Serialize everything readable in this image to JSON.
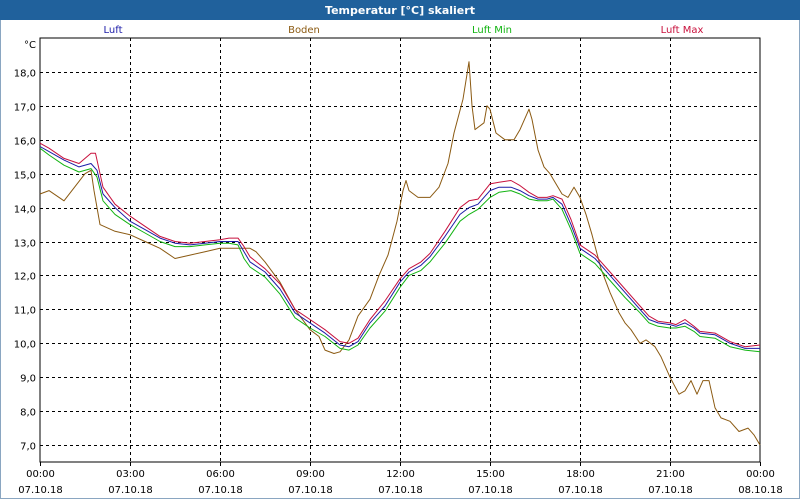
{
  "window": {
    "title": "Temperatur [°C] skaliert"
  },
  "chart_data": {
    "type": "line",
    "title": "Temperatur [°C] skaliert",
    "ylabel": "°C",
    "xlabel": "",
    "ylim": [
      6.5,
      19.0
    ],
    "xlim": [
      0,
      24
    ],
    "grid": true,
    "yticks": [
      7.0,
      8.0,
      9.0,
      10.0,
      11.0,
      12.0,
      13.0,
      14.0,
      15.0,
      16.0,
      17.0,
      18.0
    ],
    "ytick_labels": [
      "7,0",
      "8,0",
      "9,0",
      "10,0",
      "11,0",
      "12,0",
      "13,0",
      "14,0",
      "15,0",
      "16,0",
      "17,0",
      "18,0"
    ],
    "xticks": [
      {
        "x": 0,
        "time": "00:00",
        "date": "07.10.18"
      },
      {
        "x": 3,
        "time": "03:00",
        "date": "07.10.18"
      },
      {
        "x": 6,
        "time": "06:00",
        "date": "07.10.18"
      },
      {
        "x": 9,
        "time": "09:00",
        "date": "07.10.18"
      },
      {
        "x": 12,
        "time": "12:00",
        "date": "07.10.18"
      },
      {
        "x": 15,
        "time": "15:00",
        "date": "07.10.18"
      },
      {
        "x": 18,
        "time": "18:00",
        "date": "07.10.18"
      },
      {
        "x": 21,
        "time": "21:00",
        "date": "07.10.18"
      },
      {
        "x": 24,
        "time": "00:00",
        "date": "08.10.18"
      }
    ],
    "series": [
      {
        "name": "Boden",
        "color": "#8b5a12",
        "points": [
          [
            0,
            14.4
          ],
          [
            0.3,
            14.5
          ],
          [
            0.8,
            14.2
          ],
          [
            1.5,
            15.0
          ],
          [
            1.7,
            15.1
          ],
          [
            1.8,
            14.5
          ],
          [
            2.0,
            13.5
          ],
          [
            2.5,
            13.3
          ],
          [
            3.0,
            13.2
          ],
          [
            3.5,
            13.0
          ],
          [
            4.0,
            12.8
          ],
          [
            4.5,
            12.5
          ],
          [
            5.0,
            12.6
          ],
          [
            5.5,
            12.7
          ],
          [
            6.0,
            12.8
          ],
          [
            6.5,
            12.8
          ],
          [
            7.0,
            12.8
          ],
          [
            7.2,
            12.7
          ],
          [
            7.5,
            12.4
          ],
          [
            8.0,
            11.8
          ],
          [
            8.5,
            11.0
          ],
          [
            9.0,
            10.4
          ],
          [
            9.3,
            10.2
          ],
          [
            9.5,
            9.8
          ],
          [
            9.8,
            9.7
          ],
          [
            10.0,
            9.75
          ],
          [
            10.3,
            10.1
          ],
          [
            10.6,
            10.8
          ],
          [
            11.0,
            11.3
          ],
          [
            11.3,
            12.0
          ],
          [
            11.6,
            12.6
          ],
          [
            11.9,
            13.6
          ],
          [
            12.1,
            14.5
          ],
          [
            12.2,
            14.8
          ],
          [
            12.3,
            14.5
          ],
          [
            12.6,
            14.3
          ],
          [
            13.0,
            14.3
          ],
          [
            13.3,
            14.6
          ],
          [
            13.6,
            15.3
          ],
          [
            13.8,
            16.2
          ],
          [
            14.1,
            17.2
          ],
          [
            14.3,
            18.3
          ],
          [
            14.4,
            17.0
          ],
          [
            14.5,
            16.3
          ],
          [
            14.8,
            16.5
          ],
          [
            14.9,
            17.0
          ],
          [
            15.0,
            16.9
          ],
          [
            15.2,
            16.2
          ],
          [
            15.5,
            16.0
          ],
          [
            15.8,
            16.0
          ],
          [
            16.0,
            16.3
          ],
          [
            16.3,
            16.9
          ],
          [
            16.4,
            16.6
          ],
          [
            16.6,
            15.7
          ],
          [
            16.8,
            15.2
          ],
          [
            17.0,
            15.0
          ],
          [
            17.2,
            14.7
          ],
          [
            17.4,
            14.4
          ],
          [
            17.6,
            14.3
          ],
          [
            17.8,
            14.6
          ],
          [
            18.0,
            14.3
          ],
          [
            18.2,
            13.8
          ],
          [
            18.4,
            13.2
          ],
          [
            18.7,
            12.2
          ],
          [
            19.0,
            11.5
          ],
          [
            19.3,
            10.9
          ],
          [
            19.5,
            10.6
          ],
          [
            19.7,
            10.4
          ],
          [
            20.0,
            10.0
          ],
          [
            20.2,
            10.1
          ],
          [
            20.5,
            9.9
          ],
          [
            20.7,
            9.6
          ],
          [
            21.0,
            9.0
          ],
          [
            21.3,
            8.5
          ],
          [
            21.5,
            8.6
          ],
          [
            21.7,
            8.9
          ],
          [
            21.9,
            8.5
          ],
          [
            22.1,
            8.9
          ],
          [
            22.3,
            8.9
          ],
          [
            22.5,
            8.1
          ],
          [
            22.7,
            7.8
          ],
          [
            23.0,
            7.7
          ],
          [
            23.3,
            7.4
          ],
          [
            23.6,
            7.5
          ],
          [
            23.8,
            7.3
          ],
          [
            24.0,
            7.0
          ]
        ]
      },
      {
        "name": "Luft",
        "color": "#1c1ca8",
        "points": [
          [
            0,
            15.8
          ],
          [
            0.3,
            15.65
          ],
          [
            0.8,
            15.4
          ],
          [
            1.3,
            15.2
          ],
          [
            1.7,
            15.3
          ],
          [
            1.9,
            15.1
          ],
          [
            2.1,
            14.4
          ],
          [
            2.5,
            14.0
          ],
          [
            3.0,
            13.6
          ],
          [
            3.5,
            13.35
          ],
          [
            4.0,
            13.1
          ],
          [
            4.5,
            12.95
          ],
          [
            5.0,
            12.9
          ],
          [
            5.5,
            12.95
          ],
          [
            6.0,
            13.0
          ],
          [
            6.3,
            13.0
          ],
          [
            6.6,
            13.0
          ],
          [
            6.8,
            12.7
          ],
          [
            7.0,
            12.4
          ],
          [
            7.5,
            12.1
          ],
          [
            8.0,
            11.6
          ],
          [
            8.5,
            10.9
          ],
          [
            9.0,
            10.6
          ],
          [
            9.5,
            10.3
          ],
          [
            10.0,
            9.95
          ],
          [
            10.3,
            9.9
          ],
          [
            10.6,
            10.05
          ],
          [
            11.0,
            10.6
          ],
          [
            11.5,
            11.1
          ],
          [
            12.0,
            11.8
          ],
          [
            12.3,
            12.1
          ],
          [
            12.7,
            12.3
          ],
          [
            13.0,
            12.55
          ],
          [
            13.5,
            13.15
          ],
          [
            14.0,
            13.8
          ],
          [
            14.3,
            14.0
          ],
          [
            14.6,
            14.1
          ],
          [
            15.0,
            14.5
          ],
          [
            15.3,
            14.6
          ],
          [
            15.7,
            14.6
          ],
          [
            16.0,
            14.5
          ],
          [
            16.3,
            14.35
          ],
          [
            16.6,
            14.25
          ],
          [
            16.9,
            14.25
          ],
          [
            17.1,
            14.3
          ],
          [
            17.4,
            14.1
          ],
          [
            17.7,
            13.5
          ],
          [
            18.0,
            12.8
          ],
          [
            18.5,
            12.5
          ],
          [
            19.0,
            12.0
          ],
          [
            19.5,
            11.5
          ],
          [
            20.0,
            11.0
          ],
          [
            20.3,
            10.7
          ],
          [
            20.6,
            10.6
          ],
          [
            21.0,
            10.55
          ],
          [
            21.2,
            10.5
          ],
          [
            21.5,
            10.6
          ],
          [
            21.8,
            10.45
          ],
          [
            22.0,
            10.3
          ],
          [
            22.5,
            10.25
          ],
          [
            23.0,
            10.0
          ],
          [
            23.5,
            9.85
          ],
          [
            24.0,
            9.85
          ]
        ]
      },
      {
        "name": "Luft Min",
        "color": "#12b412",
        "points": [
          [
            0,
            15.75
          ],
          [
            0.3,
            15.55
          ],
          [
            0.8,
            15.25
          ],
          [
            1.3,
            15.05
          ],
          [
            1.7,
            15.15
          ],
          [
            1.9,
            14.9
          ],
          [
            2.1,
            14.2
          ],
          [
            2.5,
            13.8
          ],
          [
            3.0,
            13.5
          ],
          [
            3.5,
            13.25
          ],
          [
            4.0,
            13.0
          ],
          [
            4.5,
            12.85
          ],
          [
            5.0,
            12.85
          ],
          [
            5.5,
            12.9
          ],
          [
            6.0,
            12.95
          ],
          [
            6.3,
            12.95
          ],
          [
            6.6,
            12.9
          ],
          [
            6.8,
            12.5
          ],
          [
            7.0,
            12.25
          ],
          [
            7.5,
            11.95
          ],
          [
            8.0,
            11.45
          ],
          [
            8.5,
            10.75
          ],
          [
            9.0,
            10.45
          ],
          [
            9.5,
            10.2
          ],
          [
            10.0,
            9.85
          ],
          [
            10.3,
            9.8
          ],
          [
            10.6,
            9.95
          ],
          [
            11.0,
            10.45
          ],
          [
            11.5,
            10.95
          ],
          [
            12.0,
            11.65
          ],
          [
            12.3,
            12.0
          ],
          [
            12.7,
            12.15
          ],
          [
            13.0,
            12.4
          ],
          [
            13.5,
            12.95
          ],
          [
            14.0,
            13.6
          ],
          [
            14.3,
            13.8
          ],
          [
            14.6,
            13.95
          ],
          [
            15.0,
            14.3
          ],
          [
            15.3,
            14.45
          ],
          [
            15.7,
            14.5
          ],
          [
            16.0,
            14.4
          ],
          [
            16.3,
            14.25
          ],
          [
            16.6,
            14.2
          ],
          [
            16.9,
            14.2
          ],
          [
            17.1,
            14.25
          ],
          [
            17.4,
            13.95
          ],
          [
            17.7,
            13.35
          ],
          [
            18.0,
            12.65
          ],
          [
            18.5,
            12.35
          ],
          [
            19.0,
            11.85
          ],
          [
            19.5,
            11.35
          ],
          [
            20.0,
            10.9
          ],
          [
            20.3,
            10.6
          ],
          [
            20.6,
            10.5
          ],
          [
            21.0,
            10.45
          ],
          [
            21.2,
            10.45
          ],
          [
            21.5,
            10.5
          ],
          [
            21.8,
            10.35
          ],
          [
            22.0,
            10.2
          ],
          [
            22.5,
            10.15
          ],
          [
            23.0,
            9.9
          ],
          [
            23.5,
            9.8
          ],
          [
            24.0,
            9.75
          ]
        ]
      },
      {
        "name": "Luft Max",
        "color": "#c8103c",
        "points": [
          [
            0,
            15.9
          ],
          [
            0.3,
            15.75
          ],
          [
            0.8,
            15.45
          ],
          [
            1.3,
            15.3
          ],
          [
            1.7,
            15.6
          ],
          [
            1.85,
            15.6
          ],
          [
            2.1,
            14.6
          ],
          [
            2.5,
            14.1
          ],
          [
            3.0,
            13.75
          ],
          [
            3.5,
            13.45
          ],
          [
            4.0,
            13.15
          ],
          [
            4.5,
            13.0
          ],
          [
            5.0,
            12.95
          ],
          [
            5.5,
            13.0
          ],
          [
            6.0,
            13.05
          ],
          [
            6.3,
            13.1
          ],
          [
            6.6,
            13.1
          ],
          [
            6.8,
            12.85
          ],
          [
            7.0,
            12.55
          ],
          [
            7.5,
            12.2
          ],
          [
            8.0,
            11.75
          ],
          [
            8.5,
            11.0
          ],
          [
            9.0,
            10.7
          ],
          [
            9.5,
            10.4
          ],
          [
            10.0,
            10.05
          ],
          [
            10.3,
            10.0
          ],
          [
            10.6,
            10.15
          ],
          [
            11.0,
            10.7
          ],
          [
            11.5,
            11.25
          ],
          [
            12.0,
            11.9
          ],
          [
            12.3,
            12.2
          ],
          [
            12.7,
            12.4
          ],
          [
            13.0,
            12.65
          ],
          [
            13.5,
            13.3
          ],
          [
            14.0,
            14.0
          ],
          [
            14.3,
            14.2
          ],
          [
            14.6,
            14.25
          ],
          [
            15.0,
            14.7
          ],
          [
            15.3,
            14.75
          ],
          [
            15.7,
            14.8
          ],
          [
            16.0,
            14.65
          ],
          [
            16.3,
            14.45
          ],
          [
            16.6,
            14.3
          ],
          [
            16.9,
            14.3
          ],
          [
            17.1,
            14.35
          ],
          [
            17.4,
            14.25
          ],
          [
            17.7,
            13.65
          ],
          [
            18.0,
            12.9
          ],
          [
            18.5,
            12.6
          ],
          [
            19.0,
            12.1
          ],
          [
            19.5,
            11.6
          ],
          [
            20.0,
            11.1
          ],
          [
            20.3,
            10.8
          ],
          [
            20.6,
            10.65
          ],
          [
            21.0,
            10.6
          ],
          [
            21.2,
            10.55
          ],
          [
            21.5,
            10.7
          ],
          [
            21.8,
            10.5
          ],
          [
            22.0,
            10.35
          ],
          [
            22.5,
            10.3
          ],
          [
            23.0,
            10.05
          ],
          [
            23.5,
            9.9
          ],
          [
            24.0,
            9.95
          ]
        ]
      }
    ],
    "legend": [
      {
        "label": "Luft",
        "color": "#1c1ca8"
      },
      {
        "label": "Boden",
        "color": "#8b5a12"
      },
      {
        "label": "Luft Min",
        "color": "#12b412"
      },
      {
        "label": "Luft Max",
        "color": "#c8103c"
      }
    ]
  }
}
